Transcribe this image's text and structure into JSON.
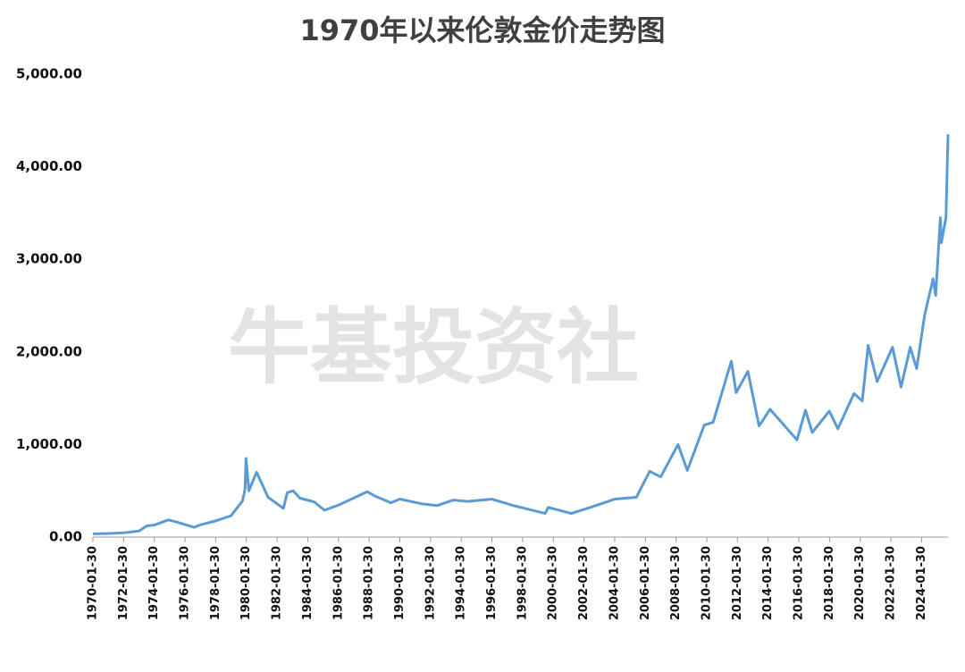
{
  "chart_data": {
    "type": "line",
    "title": "1970年以来伦敦金价走势图",
    "watermark": "牛基投资社",
    "x": [
      "1970-01-30",
      "1971-01-30",
      "1972-01-30",
      "1973-01-30",
      "1973-07-30",
      "1974-01-30",
      "1974-12-30",
      "1975-06-30",
      "1976-08-30",
      "1977-01-30",
      "1978-01-30",
      "1979-01-30",
      "1979-10-30",
      "1979-12-30",
      "1980-01-21",
      "1980-03-30",
      "1980-09-30",
      "1981-06-30",
      "1982-06-30",
      "1982-09-30",
      "1983-02-15",
      "1983-07-30",
      "1984-06-30",
      "1985-03-01",
      "1986-01-30",
      "1987-12-15",
      "1988-06-30",
      "1989-06-30",
      "1990-01-30",
      "1991-06-30",
      "1992-06-30",
      "1993-07-30",
      "1994-06-30",
      "1996-02-01",
      "1997-06-30",
      "1999-07-20",
      "1999-10-01",
      "2001-04-01",
      "2002-06-30",
      "2004-01-30",
      "2005-06-30",
      "2006-05-12",
      "2007-01-30",
      "2008-03-17",
      "2008-10-24",
      "2009-12-02",
      "2010-06-30",
      "2011-09-06",
      "2011-12-30",
      "2012-10-05",
      "2013-06-28",
      "2014-03-15",
      "2015-12-17",
      "2016-07-06",
      "2016-12-15",
      "2018-01-25",
      "2018-08-16",
      "2019-09-04",
      "2020-03-19",
      "2020-08-06",
      "2021-03-08",
      "2022-03-08",
      "2022-09-28",
      "2023-05-04",
      "2023-10-05",
      "2024-04-12",
      "2024-10-30",
      "2024-12-30",
      "2025-04-21",
      "2025-05-15",
      "2025-09-01",
      "2025-10-20"
    ],
    "series": [
      {
        "color": "#5b9bd5",
        "values": [
          35,
          38,
          46,
          65,
          120,
          130,
          185,
          165,
          105,
          132,
          175,
          230,
          390,
          520,
          850,
          500,
          700,
          430,
          310,
          480,
          500,
          420,
          380,
          290,
          345,
          490,
          440,
          370,
          410,
          360,
          340,
          400,
          385,
          410,
          340,
          255,
          320,
          255,
          320,
          410,
          430,
          710,
          650,
          1000,
          720,
          1210,
          1240,
          1900,
          1560,
          1790,
          1200,
          1380,
          1050,
          1370,
          1130,
          1360,
          1170,
          1550,
          1470,
          2070,
          1680,
          2050,
          1620,
          2050,
          1820,
          2400,
          2790,
          2610,
          3450,
          3180,
          3450,
          4350
        ]
      }
    ],
    "xlim": [
      "1970-01-30",
      "2025-10-20"
    ],
    "xticks": [
      "1970-01-30",
      "1972-01-30",
      "1974-01-30",
      "1976-01-30",
      "1978-01-30",
      "1980-01-30",
      "1982-01-30",
      "1984-01-30",
      "1986-01-30",
      "1988-01-30",
      "1990-01-30",
      "1992-01-30",
      "1994-01-30",
      "1996-01-30",
      "1998-01-30",
      "2000-01-30",
      "2002-01-30",
      "2004-01-30",
      "2006-01-30",
      "2008-01-30",
      "2010-01-30",
      "2012-01-30",
      "2014-01-30",
      "2016-01-30",
      "2018-01-30",
      "2020-01-30",
      "2022-01-30",
      "2024-01-30"
    ],
    "ylim": [
      0,
      5000
    ],
    "yticks": [
      {
        "value": 0,
        "label": "0.00"
      },
      {
        "value": 1000,
        "label": "1,000.00"
      },
      {
        "value": 2000,
        "label": "2,000.00"
      },
      {
        "value": 3000,
        "label": "3,000.00"
      },
      {
        "value": 4000,
        "label": "4,000.00"
      },
      {
        "value": 5000,
        "label": "5,000.00"
      }
    ]
  }
}
